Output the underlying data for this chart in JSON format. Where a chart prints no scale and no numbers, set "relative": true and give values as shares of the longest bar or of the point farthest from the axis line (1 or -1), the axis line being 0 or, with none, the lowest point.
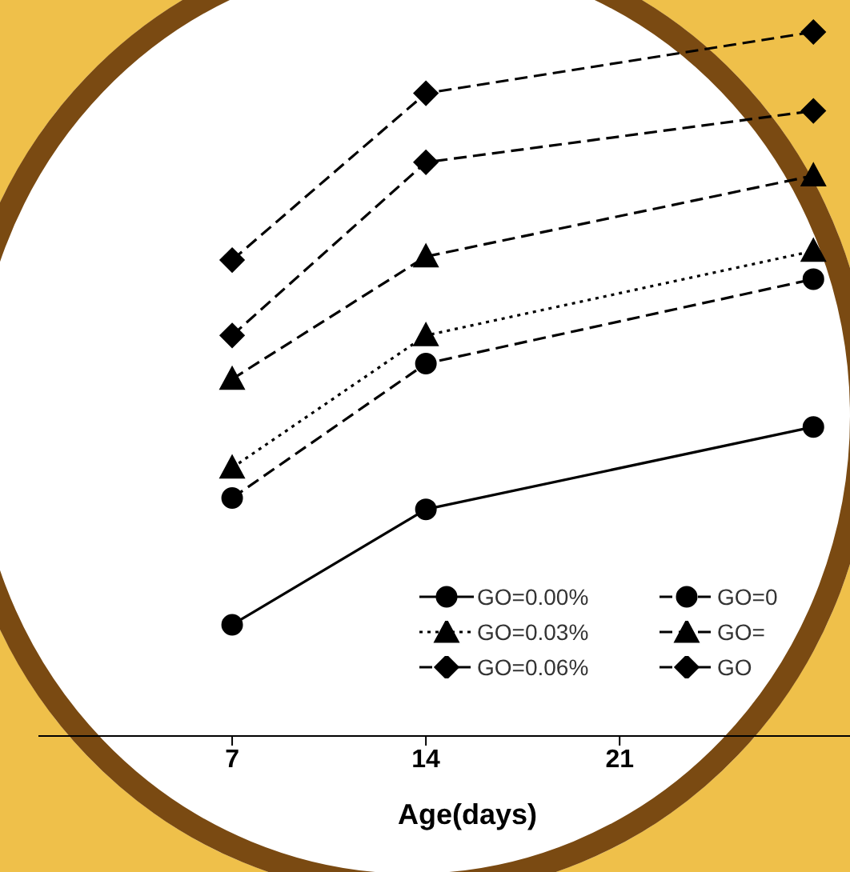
{
  "chart_data": {
    "type": "line",
    "xlabel": "Age(days)",
    "relative": true,
    "x": [
      7,
      14,
      28
    ],
    "xlim": [
      0,
      31
    ],
    "xticks": [
      7,
      14,
      21
    ],
    "legend": "bottom right",
    "tick_labels": "x",
    "series": [
      {
        "name": "GO=0.00%",
        "color": "#000000",
        "values": [
          0.158,
          0.322,
          0.439
        ],
        "marker": "circle",
        "line_style": "solid"
      },
      {
        "name": "GO=0",
        "color": "#000000",
        "values": [
          0.338,
          0.529,
          0.649
        ],
        "marker": "circle",
        "line_style": "dashed"
      },
      {
        "name": "GO=0.03%",
        "color": "#000000",
        "values": [
          0.381,
          0.569,
          0.689
        ],
        "marker": "triangle",
        "line_style": "dotted"
      },
      {
        "name": "GO=",
        "color": "#000000",
        "values": [
          0.507,
          0.681,
          0.796
        ],
        "marker": "triangle",
        "line_style": "dashed"
      },
      {
        "name": "GO=0.06%",
        "color": "#000000",
        "values": [
          0.569,
          0.815,
          0.888
        ],
        "marker": "diamond",
        "line_style": "dashed"
      },
      {
        "name": "GO",
        "color": "#000000",
        "values": [
          0.676,
          0.913,
          1
        ],
        "marker": "diamond",
        "line_style": "dashed"
      }
    ]
  }
}
